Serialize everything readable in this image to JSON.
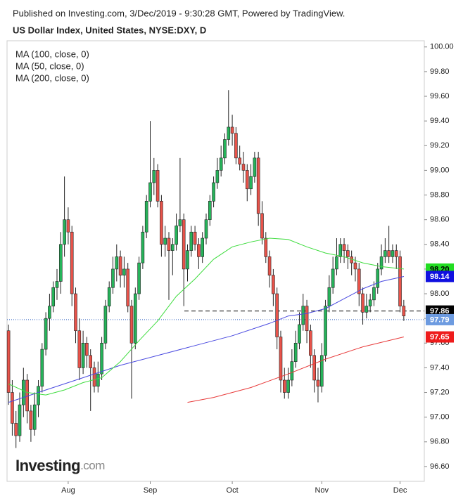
{
  "chart_data": {
    "type": "candlestick",
    "header": "Published on Investing.com, 3/Dec/2019 - 9:30:28 GMT, Powered by TradingView.",
    "title": "US Dollar Index, United States, NYSE:DXY, D",
    "logo": [
      "Investing",
      ".com"
    ],
    "up_color": "#26b35a",
    "down_color": "#e8534a",
    "xlim": [
      -0.4,
      111.5
    ],
    "xticks": [
      {
        "value": 16,
        "label": "Aug"
      },
      {
        "value": 38,
        "label": "Sep"
      },
      {
        "value": 60,
        "label": "Oct"
      },
      {
        "value": 84,
        "label": "Nov"
      },
      {
        "value": 105,
        "label": "Dec"
      }
    ],
    "ylim": [
      96.48,
      100.05
    ],
    "yticks": [
      {
        "value": 96.6,
        "label": "96.60"
      },
      {
        "value": 96.8,
        "label": "96.80"
      },
      {
        "value": 97.0,
        "label": "97.00"
      },
      {
        "value": 97.2,
        "label": "97.20"
      },
      {
        "value": 97.4,
        "label": "97.40"
      },
      {
        "value": 97.6,
        "label": "97.60"
      },
      {
        "value": 97.8,
        "label": "97.80"
      },
      {
        "value": 98.0,
        "label": "98.00"
      },
      {
        "value": 98.2,
        "label": "98.20"
      },
      {
        "value": 98.4,
        "label": "98.40"
      },
      {
        "value": 98.6,
        "label": "98.60"
      },
      {
        "value": 98.8,
        "label": "98.80"
      },
      {
        "value": 99.0,
        "label": "99.00"
      },
      {
        "value": 99.2,
        "label": "99.20"
      },
      {
        "value": 99.4,
        "label": "99.40"
      },
      {
        "value": 99.6,
        "label": "99.60"
      },
      {
        "value": 99.8,
        "label": "99.80"
      },
      {
        "value": 100.0,
        "label": "100.00"
      }
    ],
    "candles": [
      [
        97.7,
        97.75,
        97.1,
        97.2
      ],
      [
        97.2,
        97.3,
        96.85,
        96.95
      ],
      [
        96.95,
        97.05,
        96.75,
        96.85
      ],
      [
        96.85,
        97.2,
        96.8,
        97.1
      ],
      [
        97.1,
        97.4,
        97.0,
        97.3
      ],
      [
        97.3,
        97.35,
        96.95,
        97.05
      ],
      [
        97.05,
        97.1,
        96.8,
        96.9
      ],
      [
        96.9,
        97.2,
        96.85,
        97.1
      ],
      [
        97.1,
        97.3,
        97.0,
        97.25
      ],
      [
        97.25,
        97.6,
        97.2,
        97.55
      ],
      [
        97.55,
        97.85,
        97.5,
        97.8
      ],
      [
        97.8,
        98.0,
        97.7,
        97.9
      ],
      [
        97.9,
        98.1,
        97.85,
        98.05
      ],
      [
        98.05,
        98.2,
        97.95,
        98.1
      ],
      [
        98.1,
        98.5,
        98.0,
        98.4
      ],
      [
        98.4,
        98.95,
        98.3,
        98.6
      ],
      [
        98.6,
        98.7,
        98.4,
        98.5
      ],
      [
        98.5,
        98.55,
        97.9,
        98.0
      ],
      [
        98.0,
        98.05,
        97.6,
        97.7
      ],
      [
        97.7,
        97.8,
        97.3,
        97.4
      ],
      [
        97.4,
        97.7,
        97.35,
        97.6
      ],
      [
        97.6,
        97.65,
        97.4,
        97.5
      ],
      [
        97.5,
        97.55,
        97.05,
        97.4
      ],
      [
        97.4,
        97.45,
        97.2,
        97.25
      ],
      [
        97.25,
        97.45,
        97.2,
        97.35
      ],
      [
        97.35,
        97.65,
        97.3,
        97.6
      ],
      [
        97.6,
        97.95,
        97.55,
        97.9
      ],
      [
        97.9,
        98.1,
        97.85,
        98.05
      ],
      [
        98.05,
        98.3,
        98.0,
        98.2
      ],
      [
        98.2,
        98.4,
        98.1,
        98.3
      ],
      [
        98.3,
        98.35,
        98.05,
        98.15
      ],
      [
        98.15,
        98.3,
        98.05,
        98.2
      ],
      [
        98.2,
        98.25,
        97.85,
        97.9
      ],
      [
        97.9,
        97.95,
        97.15,
        97.6
      ],
      [
        97.6,
        98.05,
        97.55,
        98.0
      ],
      [
        98.0,
        98.3,
        97.95,
        98.25
      ],
      [
        98.25,
        98.55,
        98.2,
        98.5
      ],
      [
        98.5,
        98.8,
        98.45,
        98.75
      ],
      [
        98.75,
        99.4,
        98.7,
        98.9
      ],
      [
        98.9,
        99.1,
        98.8,
        99.0
      ],
      [
        99.0,
        99.05,
        98.7,
        98.75
      ],
      [
        98.75,
        98.8,
        98.3,
        98.4
      ],
      [
        98.4,
        98.55,
        98.3,
        98.45
      ],
      [
        98.45,
        98.5,
        97.95,
        98.35
      ],
      [
        98.35,
        98.45,
        98.15,
        98.4
      ],
      [
        98.4,
        98.65,
        98.35,
        98.55
      ],
      [
        98.55,
        99.1,
        98.5,
        98.6
      ],
      [
        98.6,
        98.65,
        97.9,
        98.2
      ],
      [
        98.2,
        98.4,
        98.1,
        98.35
      ],
      [
        98.35,
        98.55,
        98.3,
        98.5
      ],
      [
        98.5,
        98.55,
        98.35,
        98.4
      ],
      [
        98.4,
        98.45,
        98.2,
        98.3
      ],
      [
        98.3,
        98.5,
        98.25,
        98.45
      ],
      [
        98.45,
        98.65,
        98.4,
        98.6
      ],
      [
        98.6,
        98.8,
        98.55,
        98.75
      ],
      [
        98.75,
        98.95,
        98.7,
        98.9
      ],
      [
        98.9,
        99.1,
        98.85,
        99.0
      ],
      [
        99.0,
        99.2,
        98.95,
        99.1
      ],
      [
        99.1,
        99.3,
        99.05,
        99.25
      ],
      [
        99.25,
        99.65,
        99.2,
        99.35
      ],
      [
        99.35,
        99.45,
        99.2,
        99.3
      ],
      [
        99.3,
        99.35,
        99.05,
        99.1
      ],
      [
        99.1,
        99.2,
        99.0,
        99.05
      ],
      [
        99.05,
        99.15,
        98.9,
        99.0
      ],
      [
        99.0,
        99.05,
        98.75,
        98.85
      ],
      [
        98.85,
        99.05,
        98.8,
        98.95
      ],
      [
        98.95,
        99.15,
        98.9,
        99.1
      ],
      [
        99.1,
        99.15,
        98.55,
        98.65
      ],
      [
        98.65,
        98.75,
        98.4,
        98.45
      ],
      [
        98.45,
        98.5,
        98.25,
        98.3
      ],
      [
        98.3,
        98.35,
        98.05,
        98.15
      ],
      [
        98.15,
        98.2,
        97.9,
        98.0
      ],
      [
        98.0,
        98.05,
        97.55,
        97.65
      ],
      [
        97.65,
        97.7,
        97.2,
        97.3
      ],
      [
        97.3,
        97.4,
        97.15,
        97.2
      ],
      [
        97.2,
        97.4,
        97.15,
        97.3
      ],
      [
        97.3,
        97.55,
        97.25,
        97.45
      ],
      [
        97.45,
        97.7,
        97.4,
        97.6
      ],
      [
        97.6,
        97.85,
        97.55,
        97.75
      ],
      [
        97.75,
        98.0,
        97.7,
        97.9
      ],
      [
        97.9,
        97.95,
        97.6,
        97.7
      ],
      [
        97.7,
        97.75,
        97.4,
        97.5
      ],
      [
        97.5,
        97.55,
        97.2,
        97.3
      ],
      [
        97.3,
        97.4,
        97.12,
        97.25
      ],
      [
        97.25,
        97.6,
        97.2,
        97.5
      ],
      [
        97.5,
        97.95,
        97.45,
        97.9
      ],
      [
        97.9,
        98.15,
        97.85,
        98.05
      ],
      [
        98.05,
        98.3,
        98.0,
        98.2
      ],
      [
        98.2,
        98.45,
        98.15,
        98.3
      ],
      [
        98.3,
        98.45,
        98.25,
        98.4
      ],
      [
        98.4,
        98.45,
        98.25,
        98.35
      ],
      [
        98.35,
        98.4,
        98.2,
        98.3
      ],
      [
        98.3,
        98.35,
        98.15,
        98.25
      ],
      [
        98.25,
        98.3,
        98.1,
        98.2
      ],
      [
        98.2,
        98.25,
        97.9,
        98.0
      ],
      [
        98.0,
        98.05,
        97.75,
        97.85
      ],
      [
        97.85,
        98.0,
        97.8,
        97.9
      ],
      [
        97.9,
        98.0,
        97.85,
        97.95
      ],
      [
        97.95,
        98.1,
        97.9,
        98.05
      ],
      [
        98.05,
        98.25,
        98.0,
        98.2
      ],
      [
        98.2,
        98.4,
        98.15,
        98.3
      ],
      [
        98.3,
        98.45,
        98.25,
        98.35
      ],
      [
        98.35,
        98.55,
        98.25,
        98.3
      ],
      [
        98.3,
        98.4,
        98.25,
        98.35
      ],
      [
        98.35,
        98.4,
        98.2,
        98.3
      ],
      [
        98.3,
        98.35,
        97.85,
        97.9
      ],
      [
        97.9,
        97.95,
        97.78,
        97.82
      ]
    ],
    "series": [
      {
        "name": "MA (100, close, 0)",
        "color": "#4a4ae0",
        "x": [
          0,
          10,
          20,
          30,
          40,
          50,
          60,
          70,
          75,
          80,
          85,
          90,
          95,
          100,
          106
        ],
        "values": [
          97.12,
          97.22,
          97.32,
          97.42,
          97.5,
          97.58,
          97.66,
          97.76,
          97.82,
          97.84,
          97.88,
          97.96,
          98.04,
          98.1,
          98.14
        ]
      },
      {
        "name": "MA (50, close, 0)",
        "color": "#3ddc3d",
        "x": [
          0,
          5,
          10,
          15,
          20,
          25,
          30,
          35,
          40,
          45,
          50,
          55,
          60,
          65,
          70,
          75,
          80,
          85,
          90,
          95,
          100,
          106
        ],
        "values": [
          97.27,
          97.2,
          97.18,
          97.22,
          97.28,
          97.32,
          97.45,
          97.62,
          97.78,
          97.98,
          98.12,
          98.28,
          98.38,
          98.42,
          98.45,
          98.44,
          98.38,
          98.33,
          98.3,
          98.25,
          98.22,
          98.2
        ]
      },
      {
        "name": "MA (200, close, 0)",
        "color": "#e83a3a",
        "x": [
          48,
          55,
          65,
          75,
          85,
          95,
          106
        ],
        "values": [
          97.12,
          97.16,
          97.24,
          97.35,
          97.47,
          97.57,
          97.65
        ]
      }
    ],
    "price_labels": [
      {
        "value": 98.2,
        "label": "98.20",
        "color": "#22dd22",
        "text_color": "#000000"
      },
      {
        "value": 98.14,
        "label": "98.14",
        "color": "#1010e0",
        "text_color": "#ffffff"
      },
      {
        "value": 97.86,
        "label": "97.86",
        "color": "#000000",
        "text_color": "#ffffff",
        "line": "dashed"
      },
      {
        "value": 97.79,
        "label": "97.79",
        "color": "#6d9be0",
        "text_color": "#ffffff",
        "line": "dotted"
      },
      {
        "value": 97.65,
        "label": "97.65",
        "color": "#ee1c1c",
        "text_color": "#ffffff"
      }
    ]
  }
}
